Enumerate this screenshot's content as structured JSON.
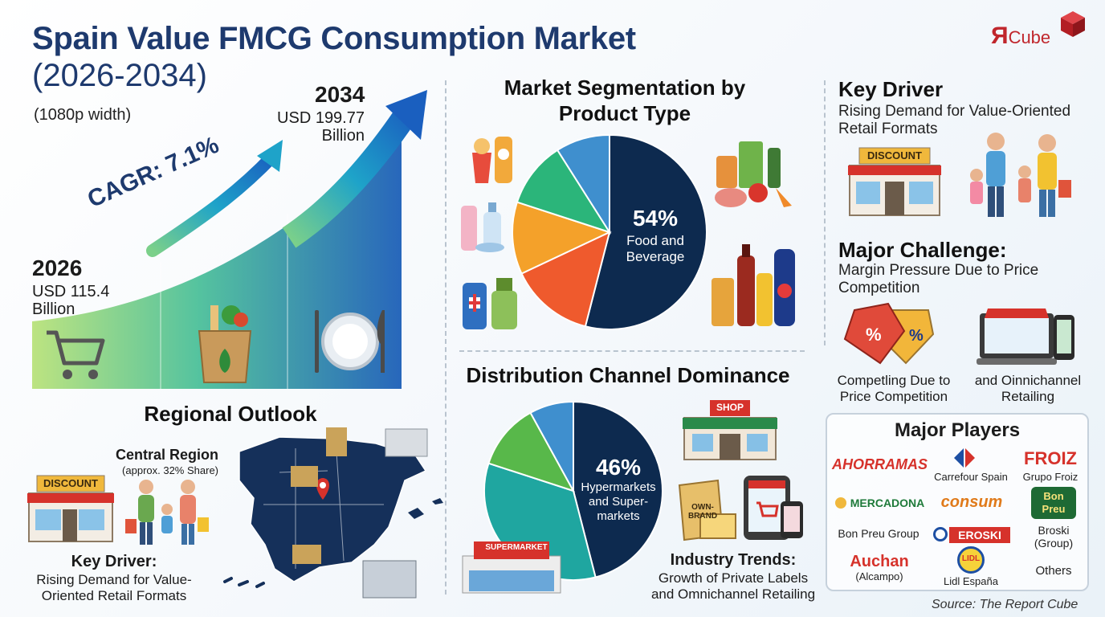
{
  "header": {
    "title": "Spain Value FMCG Consumption Market",
    "years": "(2026-2034)",
    "note": "(1080p width)",
    "brand_r": "Я",
    "brand_word": "Cube"
  },
  "growth": {
    "start_year": "2026",
    "start_value": "USD 115.4",
    "start_unit": "Billion",
    "end_year": "2034",
    "end_value": "USD 199.77",
    "end_unit": "Billion",
    "cagr": "CAGR: 7.1%",
    "icons": [
      "shopping-cart-icon",
      "grocery-bag-icon",
      "plate-cutlery-icon"
    ]
  },
  "segmentation": {
    "title_line1": "Market Segmentation by",
    "title_line2": "Product Type",
    "highlight_pct": "54%",
    "highlight_line1": "Food and",
    "highlight_line2": "Beverage"
  },
  "distribution": {
    "title": "Distribution Channel Dominance",
    "highlight_pct": "46%",
    "highlight_line1": "Hypermarkets",
    "highlight_line2": "and Super-",
    "highlight_line3": "markets",
    "shop_sign": "SHOP",
    "supermarket_sign": "SUPERMARKET",
    "own_brand": "OWN-BRAND",
    "trends_title": "Industry Trends:",
    "trends_line1": "Growth of Private Labels",
    "trends_line2": "and Omnichannel Retailing"
  },
  "regional": {
    "title": "Regional Outlook",
    "region": "Central Region",
    "share": "(approx. 32% Share)",
    "discount_sign": "DISCOUNT",
    "driver_title": "Key Driver:",
    "driver_line1": "Rising Demand for Value-",
    "driver_line2": "Oriented Retail Formats"
  },
  "key_driver": {
    "title": "Key Driver",
    "line1": "Rising Demand for Value-Oriented",
    "line2": "Retail Formats",
    "discount_sign": "DISCOUNT"
  },
  "challenge": {
    "title": "Major Challenge:",
    "line1": "Margin Pressure Due to Price",
    "line2": "Competition",
    "caption_left_1": "Competling Due to",
    "caption_left_2": "Price Competition",
    "caption_right_1": "and Oinnichannel",
    "caption_right_2": "Retailing"
  },
  "players": {
    "title": "Major Players",
    "ahorramas": "AHORRAMAS",
    "carrefour": "Carrefour Spain",
    "froiz_logo": "FROIZ",
    "froiz": "Grupo Froiz",
    "mercadona": "MERCADONA",
    "consum": "consum",
    "bonpreu_logo_1": "Bon",
    "bonpreu_logo_2": "Preu",
    "bonpreu": "Bon Preu Group",
    "eroski": "EROSKI",
    "broski_1": "Broski",
    "broski_2": "(Group)",
    "auchan": "Auchan",
    "alcampo": "(Alcampo)",
    "lidl_logo": "LIDL",
    "lidl": "Lidl España",
    "others": "Others"
  },
  "source": "Source: The Report Cube",
  "colors": {
    "navy": "#0d2a4f",
    "orange_red": "#ef5a2d",
    "amber": "#f4a12a",
    "green": "#2bb57a",
    "blue": "#3f8fce",
    "teal": "#1fa6a0",
    "lime": "#58b84a",
    "brand_red": "#c0262c"
  },
  "chart_data": [
    {
      "type": "pie",
      "title": "Market Segmentation by Product Type",
      "slices": [
        {
          "label": "Food and Beverage",
          "value": 54,
          "color": "#0d2a4f"
        },
        {
          "label": "",
          "value": 14,
          "color": "#ef5a2d"
        },
        {
          "label": "",
          "value": 12,
          "color": "#f4a12a"
        },
        {
          "label": "",
          "value": 11,
          "color": "#2bb57a"
        },
        {
          "label": "",
          "value": 9,
          "color": "#3f8fce"
        }
      ]
    },
    {
      "type": "pie",
      "title": "Distribution Channel Dominance",
      "slices": [
        {
          "label": "Hypermarkets and Supermarkets",
          "value": 46,
          "color": "#0d2a4f"
        },
        {
          "label": "",
          "value": 34,
          "color": "#1fa6a0"
        },
        {
          "label": "",
          "value": 12,
          "color": "#58b84a"
        },
        {
          "label": "",
          "value": 8,
          "color": "#3f8fce"
        }
      ]
    }
  ]
}
